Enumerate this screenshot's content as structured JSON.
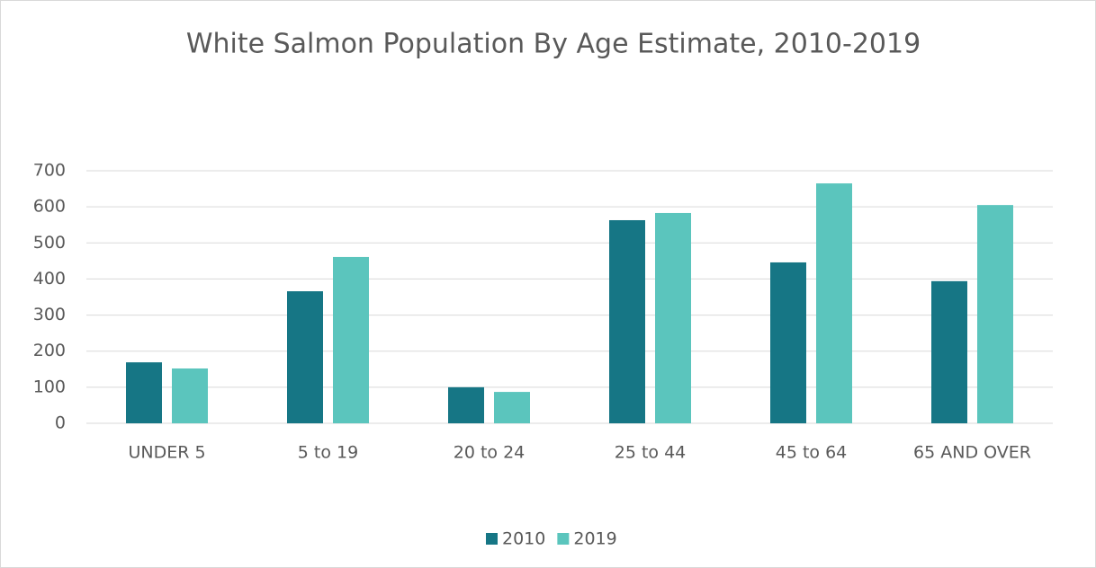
{
  "chart_data": {
    "type": "bar",
    "title": "White Salmon Population By Age Estimate, 2010-2019",
    "categories": [
      "UNDER 5",
      "5 to 19",
      "20 to 24",
      "25 to 44",
      "45 to 64",
      "65 AND OVER"
    ],
    "series": [
      {
        "name": "2010",
        "color": "#167685",
        "values": [
          169,
          366,
          100,
          563,
          446,
          394
        ]
      },
      {
        "name": "2019",
        "color": "#5bc5bd",
        "values": [
          152,
          461,
          87,
          583,
          665,
          605
        ]
      }
    ],
    "ylim": [
      0,
      700
    ],
    "yticks": [
      0,
      100,
      200,
      300,
      400,
      500,
      600,
      700
    ],
    "grid": true,
    "legend": "bottom"
  }
}
